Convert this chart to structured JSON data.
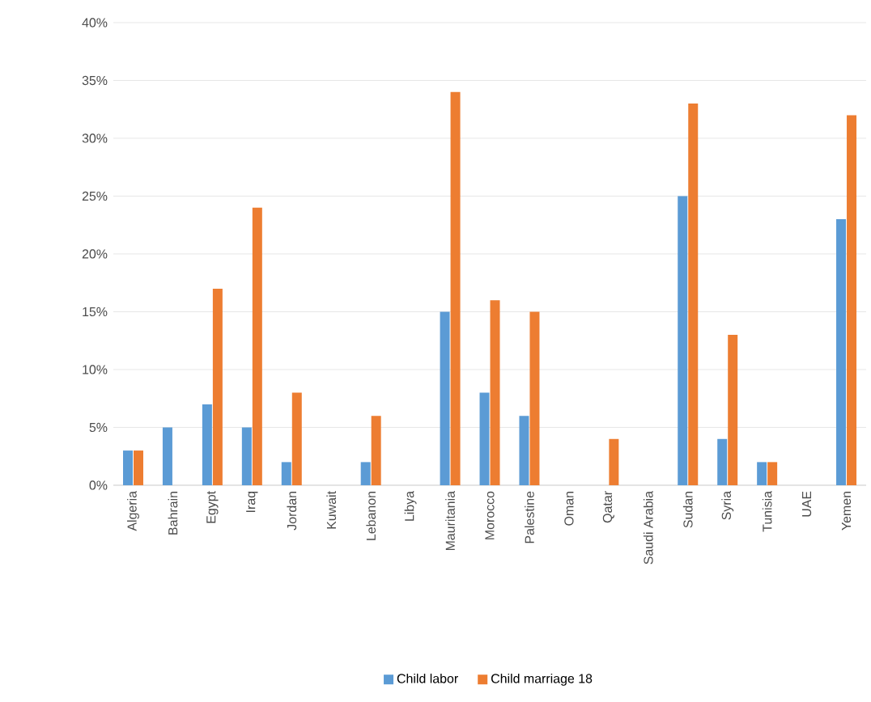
{
  "chart_data": {
    "type": "bar",
    "categories": [
      "Algeria",
      "Bahrain",
      "Egypt",
      "Iraq",
      "Jordan",
      "Kuwait",
      "Lebanon",
      "Libya",
      "Mauritania",
      "Morocco",
      "Palestine",
      "Oman",
      "Qatar",
      "Saudi Arabia",
      "Sudan",
      "Syria",
      "Tunisia",
      "UAE",
      "Yemen"
    ],
    "series": [
      {
        "name": "Child labor",
        "color": "#5b9bd5",
        "values": [
          3,
          5,
          7,
          5,
          2,
          null,
          2,
          null,
          15,
          8,
          6,
          null,
          null,
          null,
          25,
          4,
          2,
          null,
          23
        ]
      },
      {
        "name": "Child marriage 18",
        "color": "#ed7d31",
        "values": [
          3,
          null,
          17,
          24,
          8,
          null,
          6,
          null,
          34,
          16,
          15,
          null,
          4,
          null,
          33,
          13,
          2,
          null,
          32
        ]
      }
    ],
    "ylim": [
      0,
      40
    ],
    "yticks": [
      {
        "value": 0,
        "label": "0%"
      },
      {
        "value": 5,
        "label": "5%"
      },
      {
        "value": 10,
        "label": "10%"
      },
      {
        "value": 15,
        "label": "15%"
      },
      {
        "value": 20,
        "label": "20%"
      },
      {
        "value": 25,
        "label": "25%"
      },
      {
        "value": 30,
        "label": "30%"
      },
      {
        "value": 35,
        "label": "35%"
      },
      {
        "value": 40,
        "label": "40%"
      }
    ],
    "grid": "y",
    "legend": "bottom"
  }
}
